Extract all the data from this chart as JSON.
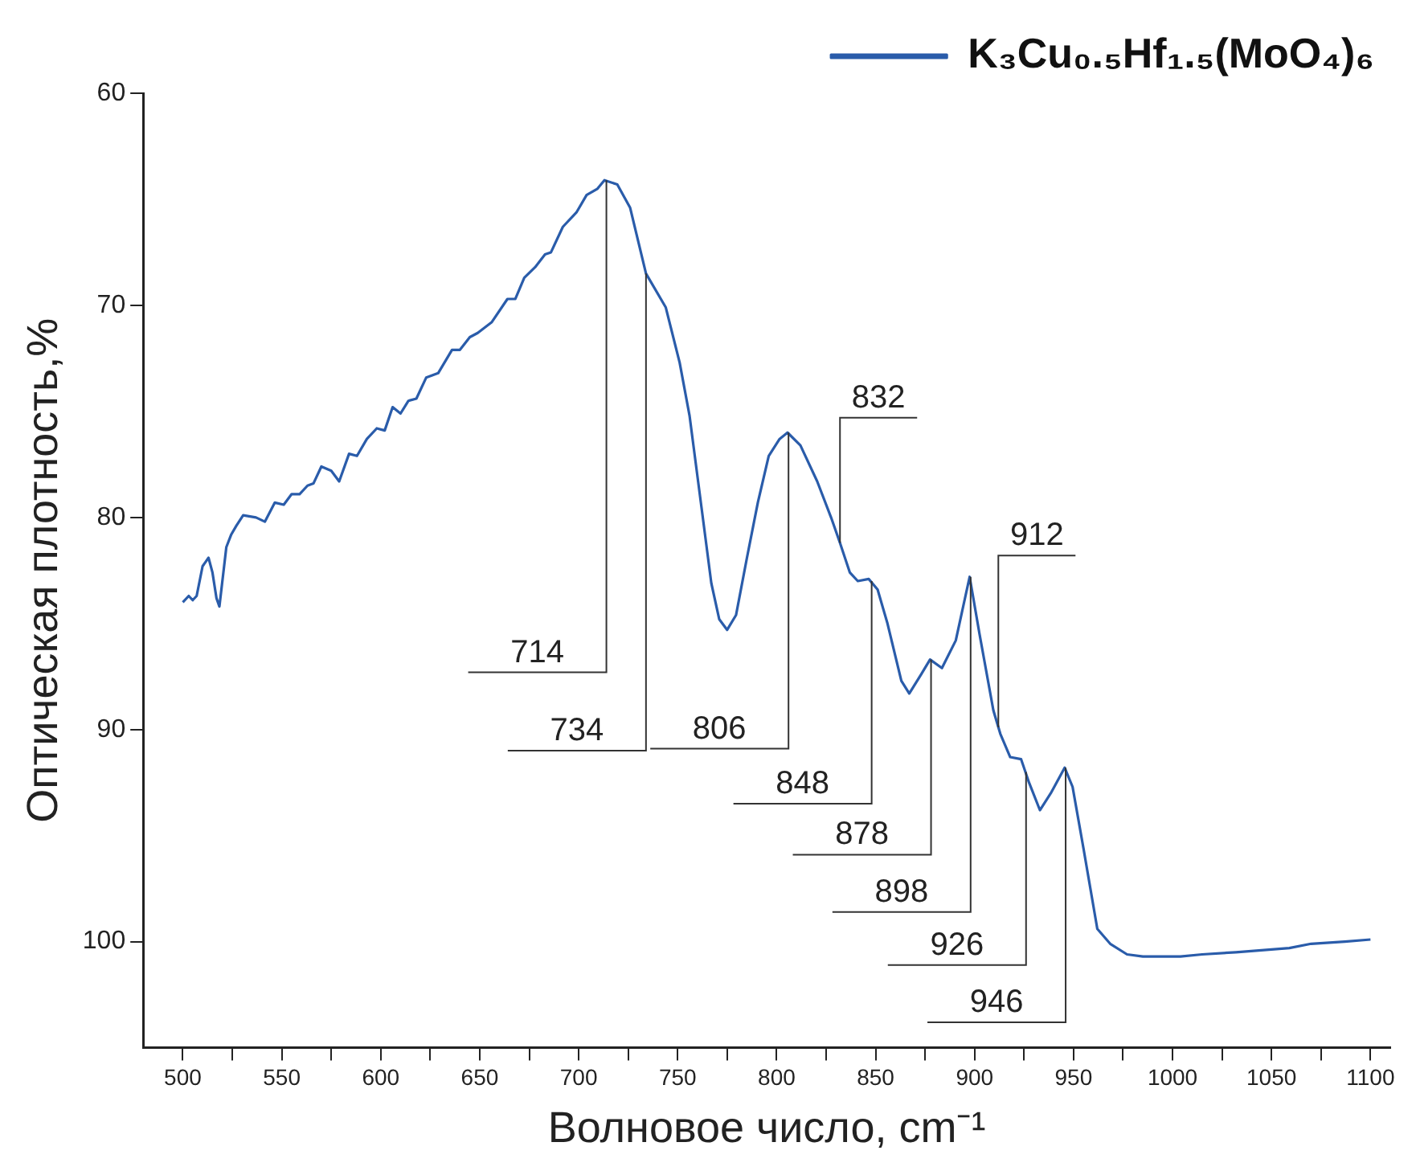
{
  "chart_data": {
    "type": "line",
    "xlabel": "Волновое число, cm⁻¹",
    "ylabel": "Оптическая плотность,%",
    "xlim": [
      480,
      1110
    ],
    "ylim": [
      105,
      60
    ],
    "xticks": [
      500,
      {
        "value": 525,
        "label": null
      },
      550,
      {
        "value": 575,
        "label": null
      },
      600,
      {
        "value": 625,
        "label": null
      },
      650,
      {
        "value": 675,
        "label": null
      },
      700,
      {
        "value": 725,
        "label": null
      },
      750,
      {
        "value": 775,
        "label": null
      },
      800,
      {
        "value": 825,
        "label": null
      },
      850,
      {
        "value": 875,
        "label": null
      },
      900,
      {
        "value": 925,
        "label": null
      },
      950,
      {
        "value": 975,
        "label": null
      },
      1000,
      {
        "value": 1025,
        "label": null
      },
      1050,
      {
        "value": 1075,
        "label": null
      },
      1100
    ],
    "yticks": [
      60,
      70,
      80,
      90,
      100
    ],
    "grid": false,
    "legend": "top right",
    "marker": "none",
    "line_style": "solid",
    "series": [
      {
        "name": "K₃Cu₀.₅Hf₁.₅(MoO₄)₆",
        "color": "#2a5caa",
        "x": [
          500,
          503,
          505,
          507,
          510,
          513,
          515,
          517,
          518.5,
          522,
          524.5,
          527,
          530.5,
          537,
          541.5,
          546.5,
          551,
          555,
          559,
          563,
          566,
          570,
          575,
          579,
          584,
          588,
          593,
          598,
          602,
          606,
          610,
          614,
          618,
          623,
          629,
          636,
          640,
          645,
          649,
          656,
          664,
          668,
          672.5,
          678,
          683,
          686,
          692,
          699,
          704,
          709.5,
          713,
          719.5,
          726,
          734,
          744,
          751,
          756,
          762,
          767,
          771,
          775,
          779.5,
          785,
          790.5,
          796,
          801.5,
          805.5,
          812,
          820.5,
          827.5,
          832,
          837,
          841,
          846.5,
          851,
          856,
          863,
          867,
          873,
          877.5,
          883.5,
          890.5,
          897.5,
          902.5,
          909.5,
          913,
          918,
          923.5,
          927.5,
          933,
          938.5,
          945.5,
          949.5,
          955,
          962,
          968.5,
          977,
          985,
          1004,
          1015,
          1032,
          1059,
          1070,
          1087,
          1100
        ],
        "values": [
          84,
          83.7,
          83.9,
          83.7,
          82.3,
          81.9,
          82.6,
          83.8,
          84.2,
          81.4,
          80.8,
          80.4,
          79.9,
          80.0,
          80.2,
          79.3,
          79.4,
          78.9,
          78.9,
          78.5,
          78.4,
          77.6,
          77.8,
          78.3,
          77.0,
          77.1,
          76.3,
          75.8,
          75.9,
          74.8,
          75.1,
          74.5,
          74.4,
          73.4,
          73.2,
          72.1,
          72.1,
          71.5,
          71.3,
          70.8,
          69.7,
          69.7,
          68.7,
          68.2,
          67.6,
          67.5,
          66.3,
          65.6,
          64.8,
          64.5,
          64.1,
          64.3,
          65.4,
          68.5,
          70.1,
          72.7,
          75.2,
          79.5,
          83.1,
          84.8,
          85.3,
          84.6,
          81.9,
          79.3,
          77.1,
          76.3,
          76.0,
          76.6,
          78.3,
          80.0,
          81.2,
          82.6,
          83.0,
          82.9,
          83.4,
          85.0,
          87.7,
          88.3,
          87.4,
          86.7,
          87.1,
          85.8,
          82.8,
          85.5,
          89.1,
          90.2,
          91.3,
          91.4,
          92.5,
          93.8,
          93.0,
          91.8,
          92.7,
          95.6,
          99.4,
          100.1,
          100.6,
          100.7,
          100.7,
          100.6,
          100.5,
          100.3,
          100.1,
          100.0,
          99.9
        ]
      }
    ],
    "annotations": [
      {
        "text": "714",
        "x": 714,
        "y": 64.1
      },
      {
        "text": "734",
        "x": 734,
        "y": 68.5
      },
      {
        "text": "806",
        "x": 806,
        "y": 76.0
      },
      {
        "text": "832",
        "x": 832,
        "y": 81.2
      },
      {
        "text": "848",
        "x": 848,
        "y": 83.0
      },
      {
        "text": "878",
        "x": 878,
        "y": 86.7
      },
      {
        "text": "898",
        "x": 898,
        "y": 82.8
      },
      {
        "text": "912",
        "x": 912,
        "y": 89.9
      },
      {
        "text": "926",
        "x": 926,
        "y": 92.0
      },
      {
        "text": "946",
        "x": 946,
        "y": 91.8
      }
    ]
  }
}
